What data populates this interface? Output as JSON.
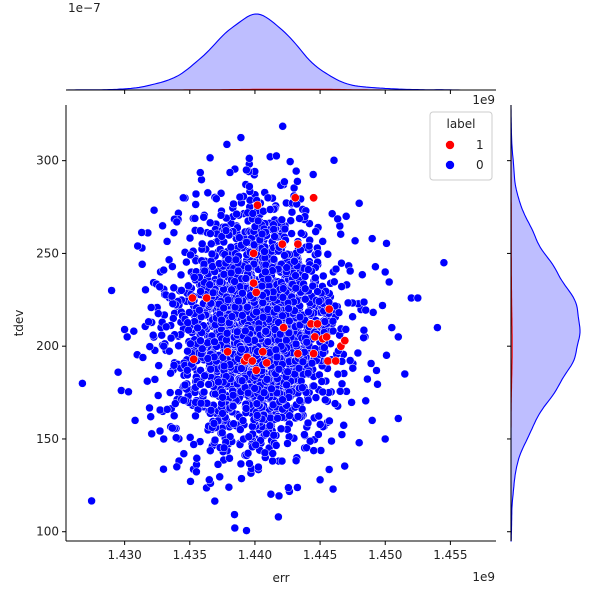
{
  "chart_data": {
    "type": "scatter",
    "kind": "jointplot",
    "xlabel": "err",
    "ylabel": "tdev",
    "x_offset_label": "1e9",
    "y_offset_label": "1e9",
    "top_marginal_offset_label": "1e−7",
    "xlim": [
      1.4255,
      1.4585
    ],
    "ylim": [
      95,
      330
    ],
    "x_ticks": [
      1.43,
      1.435,
      1.44,
      1.445,
      1.45,
      1.455
    ],
    "y_ticks": [
      100,
      150,
      200,
      250,
      300
    ],
    "legend": {
      "title": "label",
      "placement": "top-right",
      "entries": [
        {
          "label": "1",
          "color": "#ff0000"
        },
        {
          "label": "0",
          "color": "#0000ff"
        }
      ]
    },
    "colors": {
      "label_1": "#ff0000",
      "label_0": "#0000ff",
      "kde_fill": "#bbbbff",
      "kde_line": "#0000ff"
    },
    "marginals": {
      "top": "kde",
      "right": "kde"
    },
    "series": [
      {
        "name": "0",
        "distribution": {
          "x_mean": 1.44,
          "x_sd": 0.0032,
          "y_mean": 209,
          "y_sd": 33,
          "n": 2400
        },
        "outlier_points": [
          [
            1.429,
            230
          ],
          [
            1.4295,
            186
          ],
          [
            1.43,
            209
          ],
          [
            1.4302,
            205
          ],
          [
            1.4308,
            160
          ],
          [
            1.431,
            254
          ],
          [
            1.432,
            162
          ],
          [
            1.433,
            241
          ],
          [
            1.434,
            267
          ],
          [
            1.4345,
            280
          ],
          [
            1.433,
            150
          ],
          [
            1.434,
            135
          ],
          [
            1.4365,
            128
          ],
          [
            1.438,
            124
          ],
          [
            1.441,
            280
          ],
          [
            1.443,
            281
          ],
          [
            1.448,
            277
          ],
          [
            1.449,
            258
          ],
          [
            1.45,
            240
          ],
          [
            1.4505,
            210
          ],
          [
            1.451,
            205
          ],
          [
            1.4515,
            185
          ],
          [
            1.452,
            226
          ],
          [
            1.4525,
            226
          ],
          [
            1.4545,
            245
          ],
          [
            1.454,
            210
          ],
          [
            1.446,
            123
          ],
          [
            1.445,
            128
          ],
          [
            1.448,
            148
          ],
          [
            1.449,
            160
          ],
          [
            1.45,
            150
          ],
          [
            1.451,
            161
          ],
          [
            1.447,
            270
          ],
          [
            1.433,
            200
          ],
          [
            1.4335,
            175
          ]
        ]
      },
      {
        "name": "1",
        "points": [
          [
            1.4402,
            276
          ],
          [
            1.4431,
            280
          ],
          [
            1.4445,
            280
          ],
          [
            1.4421,
            255
          ],
          [
            1.4433,
            255
          ],
          [
            1.4399,
            250
          ],
          [
            1.4352,
            226
          ],
          [
            1.4363,
            226
          ],
          [
            1.4399,
            234
          ],
          [
            1.4401,
            229
          ],
          [
            1.4422,
            210
          ],
          [
            1.4443,
            212
          ],
          [
            1.4448,
            212
          ],
          [
            1.4457,
            220
          ],
          [
            1.4446,
            205
          ],
          [
            1.4452,
            204
          ],
          [
            1.4455,
            205
          ],
          [
            1.4466,
            200
          ],
          [
            1.4469,
            203
          ],
          [
            1.4379,
            197
          ],
          [
            1.4392,
            192
          ],
          [
            1.4394,
            194
          ],
          [
            1.4398,
            192
          ],
          [
            1.4401,
            187
          ],
          [
            1.4406,
            197
          ],
          [
            1.4409,
            191
          ],
          [
            1.4433,
            196
          ],
          [
            1.4445,
            196
          ],
          [
            1.4456,
            192
          ],
          [
            1.4462,
            192
          ],
          [
            1.4353,
            193
          ]
        ]
      }
    ]
  }
}
